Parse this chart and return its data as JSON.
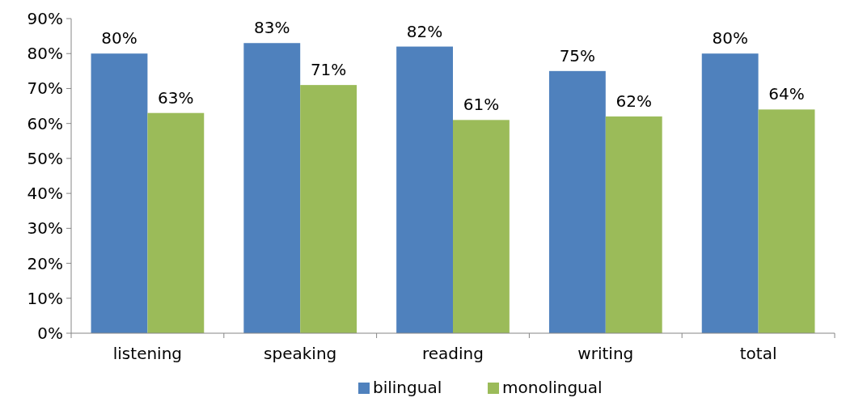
{
  "chart_data": {
    "type": "bar",
    "categories": [
      "listening",
      "speaking",
      "reading",
      "writing",
      "total"
    ],
    "series": [
      {
        "name": "bilingual",
        "color": "#4f81bd",
        "values": [
          80,
          83,
          82,
          75,
          80
        ],
        "value_labels": [
          "80%",
          "83%",
          "82%",
          "75%",
          "80%"
        ]
      },
      {
        "name": "monolingual",
        "color": "#9bbb59",
        "values": [
          63,
          71,
          61,
          62,
          64
        ],
        "value_labels": [
          "63%",
          "71%",
          "61%",
          "62%",
          "64%"
        ]
      }
    ],
    "ylim": [
      0,
      90
    ],
    "yticks": [
      {
        "value": 0,
        "label": "0%"
      },
      {
        "value": 10,
        "label": "10%"
      },
      {
        "value": 20,
        "label": "20%"
      },
      {
        "value": 30,
        "label": "30%"
      },
      {
        "value": 40,
        "label": "40%"
      },
      {
        "value": 50,
        "label": "50%"
      },
      {
        "value": 60,
        "label": "60%"
      },
      {
        "value": 70,
        "label": "70%"
      },
      {
        "value": 80,
        "label": "80%"
      },
      {
        "value": 90,
        "label": "90%"
      }
    ],
    "grid": false,
    "legend": "bottom"
  }
}
